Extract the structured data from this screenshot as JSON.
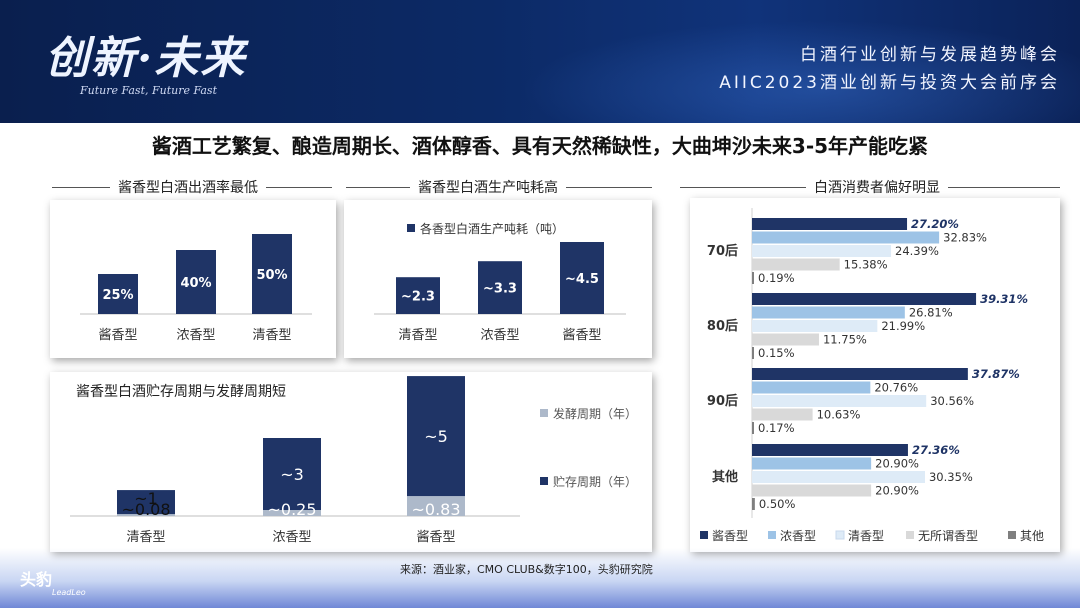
{
  "header": {
    "logo_text": "创新·未来",
    "logo_sub": "Future Fast, Future Fast",
    "event_line1": "白酒行业创新与发展趋势峰会",
    "event_line2": "AIIC2023酒业创新与投资大会前序会"
  },
  "page_title": "酱酒工艺繁复、酿造周期长、酒体醇香、具有天然稀缺性，大曲坤沙未来3-5年产能吃紧",
  "sections": {
    "left_top": "酱香型白酒出酒率最低",
    "mid_top": "酱香型白酒生产吨耗高",
    "right": "白酒消费者偏好明显"
  },
  "footer": {
    "source": "来源：酒业家，CMO CLUB&数字100，头豹研究院",
    "brand": "头豹",
    "brand_sub": "LeadLeo"
  },
  "colors": {
    "navy": "#1f3466",
    "light_blue": "#9dc3e6",
    "pale": "#deebf7",
    "gray": "#d9d9d9",
    "dark_gray": "#7f7f7f",
    "steel": "#adb9ca"
  },
  "chart_data": [
    {
      "id": "yield",
      "type": "bar",
      "categories": [
        "酱香型",
        "浓香型",
        "清香型"
      ],
      "values": [
        25,
        40,
        50
      ],
      "labels": [
        "25%",
        "40%",
        "50%"
      ],
      "title": "酱香型白酒出酒率最低"
    },
    {
      "id": "consumption",
      "type": "bar",
      "categories": [
        "清香型",
        "浓香型",
        "酱香型"
      ],
      "values": [
        2.3,
        3.3,
        4.5
      ],
      "labels": [
        "~2.3",
        "~3.3",
        "~4.5"
      ],
      "legend": "各香型白酒生产吨耗（吨）"
    },
    {
      "id": "period",
      "type": "bar",
      "stacked": true,
      "title": "酱香型白酒贮存周期与发酵周期短",
      "categories": [
        "清香型",
        "浓香型",
        "酱香型"
      ],
      "series": [
        {
          "name": "发酵周期（年）",
          "values": [
            0.08,
            0.25,
            0.83
          ],
          "labels": [
            "~0.08",
            "~0.25",
            "~0.83"
          ]
        },
        {
          "name": "贮存周期（年）",
          "values": [
            1,
            3,
            5
          ],
          "labels": [
            "~1",
            "~3",
            "~5"
          ]
        }
      ]
    },
    {
      "id": "preference",
      "type": "bar",
      "orientation": "horizontal",
      "title": "白酒消费者偏好明显",
      "categories": [
        "70后",
        "80后",
        "90后",
        "其他"
      ],
      "series": [
        {
          "name": "酱香型",
          "values": [
            27.2,
            39.31,
            37.87,
            27.36
          ]
        },
        {
          "name": "浓香型",
          "values": [
            32.83,
            26.81,
            20.76,
            20.9
          ]
        },
        {
          "name": "清香型",
          "values": [
            24.39,
            21.99,
            30.56,
            30.35
          ]
        },
        {
          "name": "无所谓香型",
          "values": [
            15.38,
            11.75,
            10.63,
            20.9
          ]
        },
        {
          "name": "其他",
          "values": [
            0.19,
            0.15,
            0.17,
            0.5
          ]
        }
      ],
      "labels": [
        [
          "27.20%",
          "32.83%",
          "24.39%",
          "15.38%",
          "0.19%"
        ],
        [
          "39.31%",
          "26.81%",
          "21.99%",
          "11.75%",
          "0.15%"
        ],
        [
          "37.87%",
          "20.76%",
          "30.56%",
          "10.63%",
          "0.17%"
        ],
        [
          "27.36%",
          "20.90%",
          "30.35%",
          "20.90%",
          "0.50%"
        ]
      ]
    }
  ]
}
